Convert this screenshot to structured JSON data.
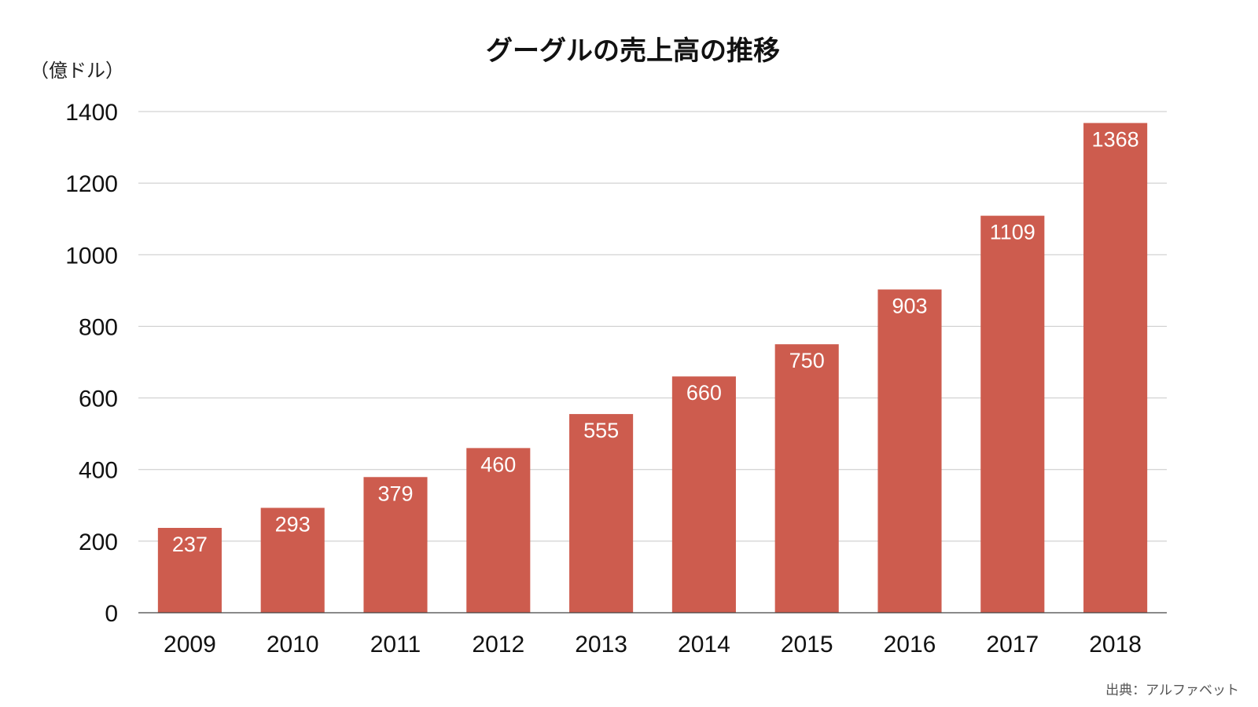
{
  "chart_data": {
    "type": "bar",
    "title": "グーグルの売上高の推移",
    "ylabel": "（億ドル）",
    "xlabel": "",
    "categories": [
      "2009",
      "2010",
      "2011",
      "2012",
      "2013",
      "2014",
      "2015",
      "2016",
      "2017",
      "2018"
    ],
    "values": [
      237,
      293,
      379,
      460,
      555,
      660,
      750,
      903,
      1109,
      1368
    ],
    "ylim": [
      0,
      1400
    ],
    "yticks": [
      0,
      200,
      400,
      600,
      800,
      1000,
      1200,
      1400
    ],
    "grid": true,
    "legend": "none",
    "bar_color": "#cd5c4e",
    "source": "出典：アルファベット"
  }
}
